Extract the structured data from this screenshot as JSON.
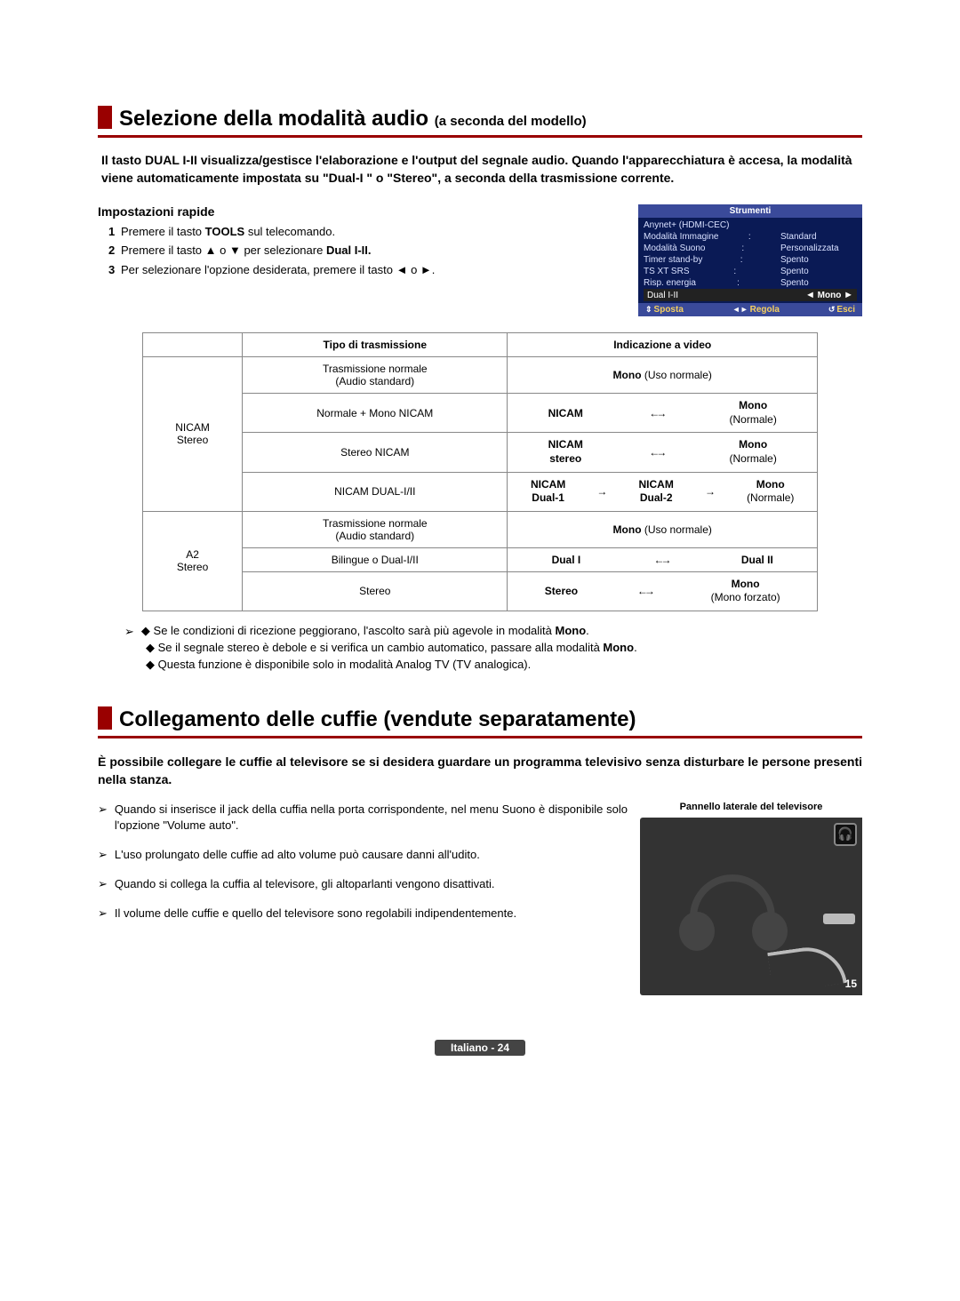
{
  "colors": {
    "brand_red": "#990000",
    "tools_blue": "#3a4a9a",
    "tools_dark": "#0a1a55",
    "tools_highlight": "#222222",
    "tools_accent": "#f5d060",
    "border_gray": "#888888",
    "page_footer_bg": "#444444"
  },
  "section1": {
    "title_main": "Selezione della modalità audio ",
    "title_sub": "(a seconda del modello)",
    "intro": "Il tasto DUAL I-II visualizza/gestisce l'elaborazione e l'output del segnale audio. Quando l'apparecchiatura è accesa, la modalità viene automaticamente impostata su \"Dual-I \" o \"Stereo\", a seconda della trasmissione corrente.",
    "quick_head": "Impostazioni rapide",
    "quick": [
      {
        "n": "1",
        "html": "Premere il tasto <b>TOOLS</b> sul telecomando."
      },
      {
        "n": "2",
        "html": "Premere il tasto ▲ o ▼ per selezionare <b>Dual I-II.</b>"
      },
      {
        "n": "3",
        "html": "Per selezionare l'opzione desiderata, premere il tasto ◄ o ►."
      }
    ]
  },
  "tools": {
    "title": "Strumenti",
    "rows": [
      {
        "k": "Anynet+ (HDMI-CEC)",
        "v": ""
      },
      {
        "k": "Modalità Immagine",
        "v": "Standard"
      },
      {
        "k": "Modalità Suono",
        "v": "Personalizzata"
      },
      {
        "k": "Timer stand-by",
        "v": "Spento"
      },
      {
        "k": "TS XT SRS",
        "v": "Spento"
      },
      {
        "k": "Risp. energia",
        "v": "Spento"
      }
    ],
    "highlight": {
      "k": "Dual I-II",
      "v": "Mono"
    },
    "footer": {
      "l": "Sposta",
      "m": "Regola",
      "r": "Esci"
    }
  },
  "table": {
    "h_blank": "",
    "h_tipo": "Tipo di trasmissione",
    "h_ind": "Indicazione a video",
    "g1": "NICAM\nStereo",
    "g2": "A2\nStereo",
    "r1c1": "Trasmissione normale\n(Audio standard)",
    "r1c2_b": "Mono",
    "r1c2_t": " (Uso normale)",
    "r2c1": "Normale + Mono NICAM",
    "r2_left": "NICAM",
    "r2_right_b": "Mono",
    "r2_right_t": "(Normale)",
    "r3c1": "Stereo NICAM",
    "r3_left": "NICAM\nstereo",
    "r3_right_b": "Mono",
    "r3_right_t": "(Normale)",
    "r4c1": "NICAM DUAL-I/II",
    "r4_a": "NICAM\nDual-1",
    "r4_b": "NICAM\nDual-2",
    "r4_c_b": "Mono",
    "r4_c_t": "(Normale)",
    "r5c1": "Trasmissione normale\n(Audio standard)",
    "r5c2_b": "Mono",
    "r5c2_t": " (Uso normale)",
    "r6c1": "Bilingue o Dual-I/II",
    "r6_l": "Dual I",
    "r6_r": "Dual II",
    "r7c1": "Stereo",
    "r7_l": "Stereo",
    "r7_r_b": "Mono",
    "r7_r_t": "(Mono forzato)"
  },
  "notes1": [
    "Se le condizioni di ricezione peggiorano, l'ascolto sarà più agevole in modalità <b>Mono</b>.",
    "Se il segnale stereo è debole e si verifica un cambio automatico, passare alla modalità <b>Mono</b>.",
    "Questa funzione è disponibile solo in modalità Analog TV (TV analogica)."
  ],
  "section2": {
    "title": "Collegamento delle cuffie (vendute separatamente)",
    "intro": "È possibile collegare le cuffie al televisore se si desidera guardare un programma televisivo senza disturbare le persone presenti nella stanza.",
    "items": [
      "Quando si inserisce il jack della cuffia nella porta corrispondente, nel menu Suono è disponibile solo l'opzione \"Volume auto\".",
      "L'uso prolungato delle cuffie ad alto volume può causare danni all'udito.",
      "Quando si collega la cuffia al televisore, gli altoparlanti vengono disattivati.",
      "Il volume delle cuffie e quello del televisore sono regolabili indipendentemente."
    ],
    "panel_label": "Pannello laterale del televisore",
    "badge": "15",
    "port_icon": "🎧"
  },
  "footer": "Italiano - 24"
}
